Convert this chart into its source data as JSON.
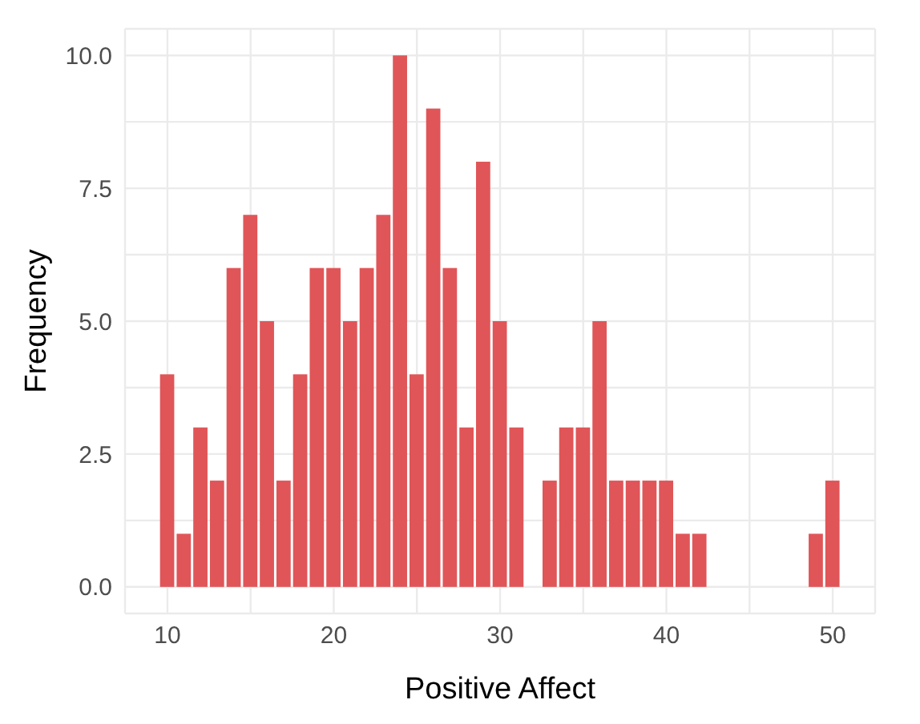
{
  "chart_data": {
    "type": "histogram",
    "xlabel": "Positive Affect",
    "ylabel": "Frequency",
    "bins": [
      9.5,
      10.5,
      11.5,
      12.5,
      13.5,
      14.5,
      15.5,
      16.5,
      17.5,
      18.5,
      19.5,
      20.5,
      21.5,
      22.5,
      23.5,
      24.5,
      25.5,
      26.5,
      27.5,
      28.5,
      29.5,
      30.5,
      31.5,
      32.5,
      33.5,
      34.5,
      35.5,
      36.5,
      37.5,
      38.5,
      39.5,
      40.5,
      41.5,
      42.5,
      43.5,
      44.5,
      45.5,
      46.5,
      47.5,
      48.5,
      49.5,
      50.5
    ],
    "values": [
      4,
      1,
      3,
      2,
      6,
      7,
      5,
      2,
      4,
      6,
      6,
      5,
      6,
      7,
      10,
      4,
      9,
      6,
      3,
      8,
      5,
      3,
      0,
      2,
      3,
      3,
      5,
      2,
      2,
      2,
      2,
      1,
      1,
      0,
      0,
      0,
      0,
      0,
      0,
      1,
      2
    ],
    "color": "#e05558",
    "xlim": [
      7.45,
      52.55
    ],
    "xticks": [
      10,
      {
        "value": 15,
        "label": null
      },
      20,
      {
        "value": 25,
        "label": null
      },
      30,
      {
        "value": 35,
        "label": null
      },
      40,
      {
        "value": 45,
        "label": null
      },
      50
    ],
    "ylim": [
      -0.5,
      10.5
    ],
    "yticks": [
      {
        "value": 0,
        "label": "0.0"
      },
      {
        "value": 1.25,
        "label": null
      },
      {
        "value": 2.5,
        "label": "2.5"
      },
      {
        "value": 3.75,
        "label": null
      },
      {
        "value": 5,
        "label": "5.0"
      },
      {
        "value": 6.25,
        "label": null
      },
      {
        "value": 7.5,
        "label": "7.5"
      },
      {
        "value": 8.75,
        "label": null
      },
      {
        "value": 10,
        "label": "10.0"
      }
    ],
    "grid": true
  }
}
